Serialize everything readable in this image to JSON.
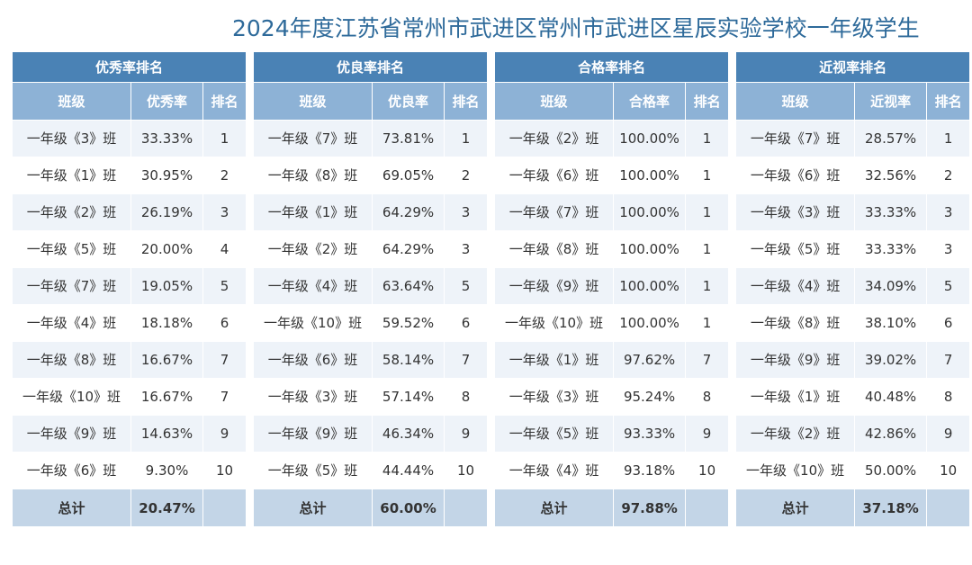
{
  "header": {
    "title": "2024年度江苏省常州市武进区常州市武进区星辰实验学校一年级学生"
  },
  "tables": [
    {
      "title": "优秀率排名",
      "columns": [
        "班级",
        "优秀率",
        "排名"
      ],
      "rows": [
        [
          "一年级《3》班",
          "33.33%",
          1
        ],
        [
          "一年级《1》班",
          "30.95%",
          2
        ],
        [
          "一年级《2》班",
          "26.19%",
          3
        ],
        [
          "一年级《5》班",
          "20.00%",
          4
        ],
        [
          "一年级《7》班",
          "19.05%",
          5
        ],
        [
          "一年级《4》班",
          "18.18%",
          6
        ],
        [
          "一年级《8》班",
          "16.67%",
          7
        ],
        [
          "一年级《10》班",
          "16.67%",
          7
        ],
        [
          "一年级《9》班",
          "14.63%",
          9
        ],
        [
          "一年级《6》班",
          "9.30%",
          10
        ]
      ],
      "total": [
        "总计",
        "20.47%"
      ]
    },
    {
      "title": "优良率排名",
      "columns": [
        "班级",
        "优良率",
        "排名"
      ],
      "rows": [
        [
          "一年级《7》班",
          "73.81%",
          1
        ],
        [
          "一年级《8》班",
          "69.05%",
          2
        ],
        [
          "一年级《1》班",
          "64.29%",
          3
        ],
        [
          "一年级《2》班",
          "64.29%",
          3
        ],
        [
          "一年级《4》班",
          "63.64%",
          5
        ],
        [
          "一年级《10》班",
          "59.52%",
          6
        ],
        [
          "一年级《6》班",
          "58.14%",
          7
        ],
        [
          "一年级《3》班",
          "57.14%",
          8
        ],
        [
          "一年级《9》班",
          "46.34%",
          9
        ],
        [
          "一年级《5》班",
          "44.44%",
          10
        ]
      ],
      "total": [
        "总计",
        "60.00%"
      ]
    },
    {
      "title": "合格率排名",
      "columns": [
        "班级",
        "合格率",
        "排名"
      ],
      "rows": [
        [
          "一年级《2》班",
          "100.00%",
          1
        ],
        [
          "一年级《6》班",
          "100.00%",
          1
        ],
        [
          "一年级《7》班",
          "100.00%",
          1
        ],
        [
          "一年级《8》班",
          "100.00%",
          1
        ],
        [
          "一年级《9》班",
          "100.00%",
          1
        ],
        [
          "一年级《10》班",
          "100.00%",
          1
        ],
        [
          "一年级《1》班",
          "97.62%",
          7
        ],
        [
          "一年级《3》班",
          "95.24%",
          8
        ],
        [
          "一年级《5》班",
          "93.33%",
          9
        ],
        [
          "一年级《4》班",
          "93.18%",
          10
        ]
      ],
      "total": [
        "总计",
        "97.88%"
      ]
    },
    {
      "title": "近视率排名",
      "columns": [
        "班级",
        "近视率",
        "排名"
      ],
      "rows": [
        [
          "一年级《7》班",
          "28.57%",
          1
        ],
        [
          "一年级《6》班",
          "32.56%",
          2
        ],
        [
          "一年级《3》班",
          "33.33%",
          3
        ],
        [
          "一年级《5》班",
          "33.33%",
          3
        ],
        [
          "一年级《4》班",
          "34.09%",
          5
        ],
        [
          "一年级《8》班",
          "38.10%",
          6
        ],
        [
          "一年级《9》班",
          "39.02%",
          7
        ],
        [
          "一年级《1》班",
          "40.48%",
          8
        ],
        [
          "一年级《2》班",
          "42.86%",
          9
        ],
        [
          "一年级《10》班",
          "50.00%",
          10
        ]
      ],
      "total": [
        "总计",
        "37.18%"
      ]
    }
  ]
}
